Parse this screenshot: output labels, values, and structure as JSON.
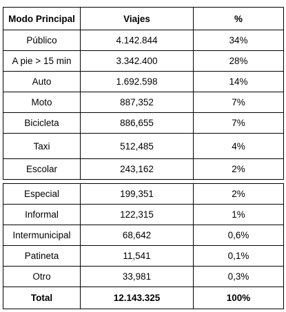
{
  "table": {
    "headers": {
      "mode": "Modo Principal",
      "trips": "Viajes",
      "percent": "%"
    },
    "upper_rows": [
      {
        "mode": "Público",
        "trips": "4.142.844",
        "percent": "34%"
      },
      {
        "mode": "A pie > 15 min",
        "trips": "3.342.400",
        "percent": "28%"
      },
      {
        "mode": "Auto",
        "trips": "1.692.598",
        "percent": "14%"
      },
      {
        "mode": "Moto",
        "trips": "887,352",
        "percent": "7%"
      },
      {
        "mode": "Bicicleta",
        "trips": "886,655",
        "percent": "7%"
      },
      {
        "mode": "Taxi",
        "trips": "512,485",
        "percent": "4%"
      },
      {
        "mode": "Escolar",
        "trips": "243,162",
        "percent": "2%"
      }
    ],
    "lower_rows": [
      {
        "mode": "Especial",
        "trips": "199,351",
        "percent": "2%"
      },
      {
        "mode": "Informal",
        "trips": "122,315",
        "percent": "1%"
      },
      {
        "mode": "Intermunicipal",
        "trips": "68,642",
        "percent": "0,6%"
      },
      {
        "mode": "Patineta",
        "trips": "11,541",
        "percent": "0,1%"
      },
      {
        "mode": "Otro",
        "trips": "33,981",
        "percent": "0,3%"
      }
    ],
    "total": {
      "mode": "Total",
      "trips": "12.143.325",
      "percent": "100%"
    }
  }
}
